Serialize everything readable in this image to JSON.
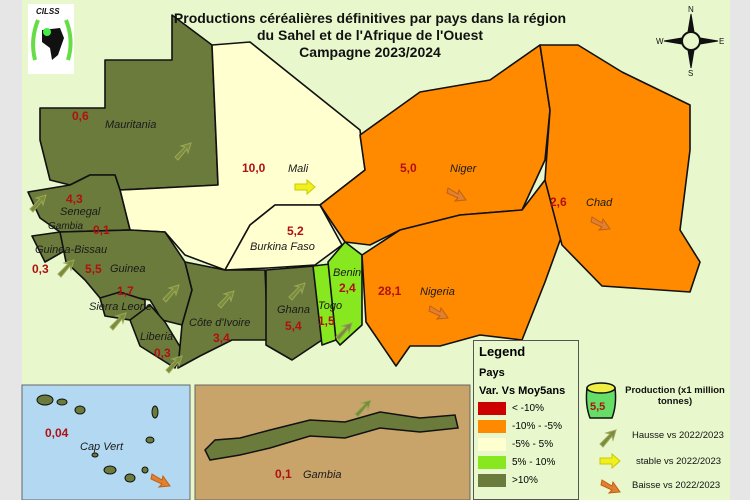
{
  "title": {
    "line1": "Productions céréalières définitives par pays dans la région",
    "line2": "du Sahel et de l'Afrique de l'Ouest",
    "line3": "Campagne 2023/2024"
  },
  "logo": {
    "text": "CILSS"
  },
  "compass": {
    "n": "N",
    "s": "S",
    "e": "E",
    "w": "W"
  },
  "colors": {
    "lt_minus10": "#cc0000",
    "minus10_minus5": "#ff8a00",
    "minus5_5": "#ffffd0",
    "5_10": "#88e820",
    "gt10": "#6b7b3c",
    "sea": "#e8f8cc",
    "capvert_bg": "#b3d9f2",
    "gambia_bg": "#c9a46a"
  },
  "countries": [
    {
      "name": "Mauritania",
      "value": "0,6",
      "class": ">10%",
      "trend": "hausse"
    },
    {
      "name": "Mali",
      "value": "10,0",
      "class": "-5% - 5%",
      "trend": "stable"
    },
    {
      "name": "Senegal",
      "value": "4,3",
      "class": ">10%",
      "trend": "hausse"
    },
    {
      "name": "Gambia",
      "value": "0,1",
      "class": ">10%",
      "trend": "hausse"
    },
    {
      "name": "Guinea-Bissau",
      "value": "0,3",
      "class": ">10%",
      "trend": "hausse"
    },
    {
      "name": "Guinea",
      "value": "5,5",
      "class": ">10%",
      "trend": "hausse"
    },
    {
      "name": "Sierra Leone",
      "value": "1,7",
      "class": ">10%",
      "trend": "hausse"
    },
    {
      "name": "Liberia",
      "value": "0,3",
      "class": ">10%",
      "trend": "hausse"
    },
    {
      "name": "Côte d'Ivoire",
      "value": "3,4",
      "class": ">10%",
      "trend": "hausse"
    },
    {
      "name": "Burkina Faso",
      "value": "5,2",
      "class": "-5% - 5%",
      "trend": "hausse"
    },
    {
      "name": "Ghana",
      "value": "5,4",
      "class": ">10%",
      "trend": "hausse"
    },
    {
      "name": "Togo",
      "value": "1,5",
      "class": "5% - 10%",
      "trend": "hausse"
    },
    {
      "name": "Benin",
      "value": "2,4",
      "class": "5% - 10%",
      "trend": "hausse"
    },
    {
      "name": "Niger",
      "value": "5,0",
      "class": "-10% - -5%",
      "trend": "baisse"
    },
    {
      "name": "Nigeria",
      "value": "28,1",
      "class": "-10% - -5%",
      "trend": "baisse"
    },
    {
      "name": "Chad",
      "value": "2,6",
      "class": "-10% - -5%",
      "trend": "baisse"
    },
    {
      "name": "Cap Vert",
      "value": "0,04",
      "class": "<-10%",
      "trend": "baisse"
    }
  ],
  "legend": {
    "title": "Legend",
    "subtitle": "Pays",
    "var_label": "Var. Vs Moy5ans",
    "classes": [
      {
        "label": "< -10%",
        "color": "#cc0000"
      },
      {
        "label": "-10% - -5%",
        "color": "#ff8a00"
      },
      {
        "label": "-5% - 5%",
        "color": "#ffffd0"
      },
      {
        "label": "5% - 10%",
        "color": "#88e820"
      },
      {
        "label": ">10%",
        "color": "#6b7b3c"
      }
    ],
    "production_label": "Production (x1 million tonnes)",
    "production_example": "5,5",
    "hausse": "Hausse vs 2022/2023",
    "stable": "stable vs 2022/2023",
    "baisse": "Baisse vs 2022/2023"
  }
}
